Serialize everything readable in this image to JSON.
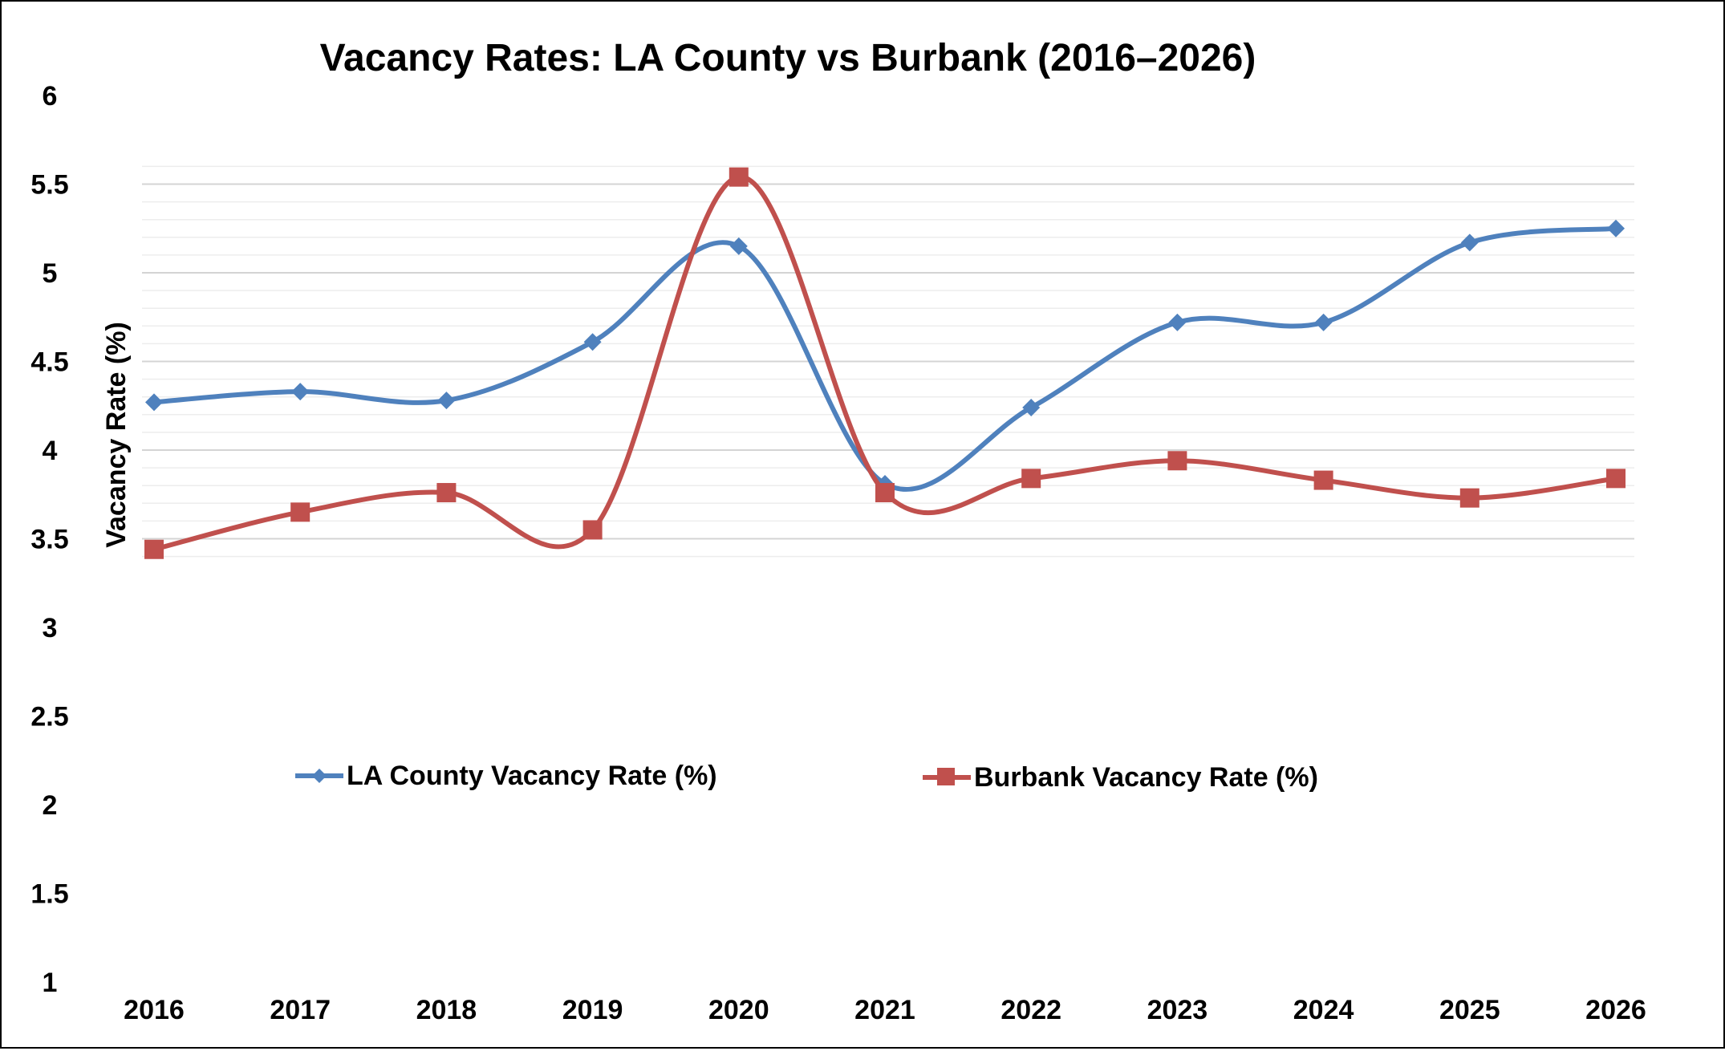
{
  "chart_data": {
    "type": "line",
    "title": "Vacancy Rates: LA County vs Burbank (2016–2026)",
    "xlabel": "",
    "ylabel": "Vacancy Rate (%)",
    "categories": [
      "2016",
      "2017",
      "2018",
      "2019",
      "2020",
      "2021",
      "2022",
      "2023",
      "2024",
      "2025",
      "2026"
    ],
    "ylim": [
      1,
      6
    ],
    "yticks": [
      "1",
      "1.5",
      "2",
      "2.5",
      "3",
      "3.5",
      "4",
      "4.5",
      "5",
      "5.5",
      "6"
    ],
    "grid": "horizontal lines between 3.4 and 5.6",
    "legend": "middle, horizontal",
    "series": [
      {
        "name": "LA County Vacancy Rate (%)",
        "color": "#4F81BD",
        "marker": "diamond",
        "values": [
          4.27,
          4.33,
          4.28,
          4.61,
          5.15,
          3.81,
          4.24,
          4.72,
          4.72,
          5.17,
          5.25
        ]
      },
      {
        "name": "Burbank Vacancy Rate (%)",
        "color": "#C0504D",
        "marker": "square",
        "values": [
          3.44,
          3.65,
          3.76,
          3.55,
          5.54,
          3.76,
          3.84,
          3.94,
          3.83,
          3.73,
          3.84
        ]
      }
    ]
  }
}
